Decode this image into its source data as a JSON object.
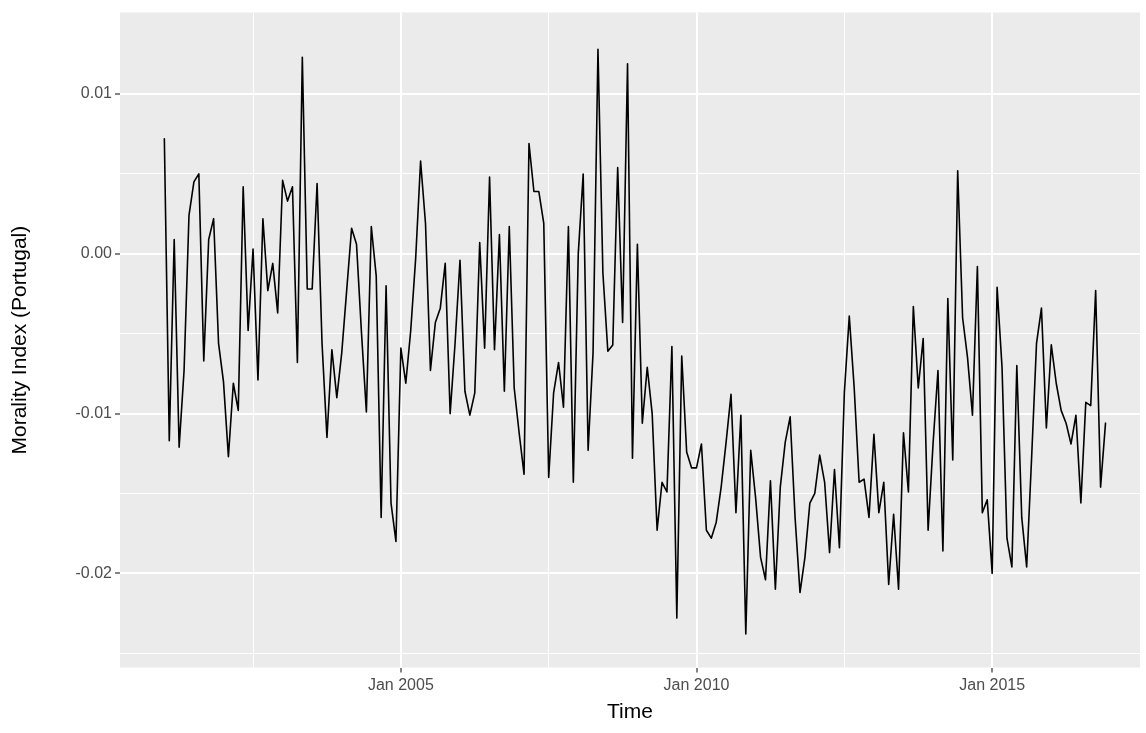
{
  "chart_data": {
    "type": "line",
    "xlabel": "Time",
    "ylabel": "Morality Index (Portugal)",
    "x": [
      "2001-01",
      "2001-02",
      "2001-03",
      "2001-04",
      "2001-05",
      "2001-06",
      "2001-07",
      "2001-08",
      "2001-09",
      "2001-10",
      "2001-11",
      "2001-12",
      "2002-01",
      "2002-02",
      "2002-03",
      "2002-04",
      "2002-05",
      "2002-06",
      "2002-07",
      "2002-08",
      "2002-09",
      "2002-10",
      "2002-11",
      "2002-12",
      "2003-01",
      "2003-02",
      "2003-03",
      "2003-04",
      "2003-05",
      "2003-06",
      "2003-07",
      "2003-08",
      "2003-09",
      "2003-10",
      "2003-11",
      "2003-12",
      "2004-01",
      "2004-02",
      "2004-03",
      "2004-04",
      "2004-05",
      "2004-06",
      "2004-07",
      "2004-08",
      "2004-09",
      "2004-10",
      "2004-11",
      "2004-12",
      "2005-01",
      "2005-02",
      "2005-03",
      "2005-04",
      "2005-05",
      "2005-06",
      "2005-07",
      "2005-08",
      "2005-09",
      "2005-10",
      "2005-11",
      "2005-12",
      "2006-01",
      "2006-02",
      "2006-03",
      "2006-04",
      "2006-05",
      "2006-06",
      "2006-07",
      "2006-08",
      "2006-09",
      "2006-10",
      "2006-11",
      "2006-12",
      "2007-01",
      "2007-02",
      "2007-03",
      "2007-04",
      "2007-05",
      "2007-06",
      "2007-07",
      "2007-08",
      "2007-09",
      "2007-10",
      "2007-11",
      "2007-12",
      "2008-01",
      "2008-02",
      "2008-03",
      "2008-04",
      "2008-05",
      "2008-06",
      "2008-07",
      "2008-08",
      "2008-09",
      "2008-10",
      "2008-11",
      "2008-12",
      "2009-01",
      "2009-02",
      "2009-03",
      "2009-04",
      "2009-05",
      "2009-06",
      "2009-07",
      "2009-08",
      "2009-09",
      "2009-10",
      "2009-11",
      "2009-12",
      "2010-01",
      "2010-02",
      "2010-03",
      "2010-04",
      "2010-05",
      "2010-06",
      "2010-07",
      "2010-08",
      "2010-09",
      "2010-10",
      "2010-11",
      "2010-12",
      "2011-01",
      "2011-02",
      "2011-03",
      "2011-04",
      "2011-05",
      "2011-06",
      "2011-07",
      "2011-08",
      "2011-09",
      "2011-10",
      "2011-11",
      "2011-12",
      "2012-01",
      "2012-02",
      "2012-03",
      "2012-04",
      "2012-05",
      "2012-06",
      "2012-07",
      "2012-08",
      "2012-09",
      "2012-10",
      "2012-11",
      "2012-12",
      "2013-01",
      "2013-02",
      "2013-03",
      "2013-04",
      "2013-05",
      "2013-06",
      "2013-07",
      "2013-08",
      "2013-09",
      "2013-10",
      "2013-11",
      "2013-12",
      "2014-01",
      "2014-02",
      "2014-03",
      "2014-04",
      "2014-05",
      "2014-06",
      "2014-07",
      "2014-08",
      "2014-09",
      "2014-10",
      "2014-11",
      "2014-12",
      "2015-01",
      "2015-02",
      "2015-03",
      "2015-04",
      "2015-05",
      "2015-06",
      "2015-07",
      "2015-08",
      "2015-09",
      "2015-10",
      "2015-11",
      "2015-12",
      "2016-01",
      "2016-02",
      "2016-03",
      "2016-04",
      "2016-05",
      "2016-06",
      "2016-07",
      "2016-08",
      "2016-09",
      "2016-10",
      "2016-11",
      "2016-12"
    ],
    "series": [
      {
        "color": "#000000",
        "values": [
          0.0072,
          -0.0117,
          0.0009,
          -0.0121,
          -0.0073,
          0.0024,
          0.0045,
          0.005,
          -0.0067,
          0.0009,
          0.0022,
          -0.0056,
          -0.008,
          -0.0127,
          -0.0081,
          -0.0098,
          0.0042,
          -0.0048,
          0.0003,
          -0.0079,
          0.0022,
          -0.0023,
          -0.0006,
          -0.0037,
          0.0046,
          0.0033,
          0.0042,
          -0.0068,
          0.0123,
          -0.0022,
          -0.0022,
          0.0044,
          -0.0056,
          -0.0115,
          -0.006,
          -0.009,
          -0.0062,
          -0.0023,
          0.0016,
          0.0006,
          -0.0049,
          -0.0099,
          0.0017,
          -0.0014,
          -0.0165,
          -0.002,
          -0.0156,
          -0.018,
          -0.0059,
          -0.0081,
          -0.0048,
          -0.0003,
          0.0058,
          0.0019,
          -0.0073,
          -0.0043,
          -0.0034,
          -0.0006,
          -0.01,
          -0.0056,
          -0.0004,
          -0.0086,
          -0.0101,
          -0.0087,
          0.0007,
          -0.0059,
          0.0048,
          -0.006,
          0.0012,
          -0.0086,
          0.0017,
          -0.0084,
          -0.0112,
          -0.0138,
          0.0069,
          0.0039,
          0.0039,
          0.0019,
          -0.014,
          -0.0087,
          -0.0068,
          -0.0096,
          0.0017,
          -0.0143,
          0.0,
          0.005,
          -0.0123,
          -0.0062,
          0.0128,
          -0.0012,
          -0.0061,
          -0.0057,
          0.0054,
          -0.0043,
          0.0119,
          -0.0128,
          0.0006,
          -0.0106,
          -0.0071,
          -0.01,
          -0.0173,
          -0.0143,
          -0.0149,
          -0.0058,
          -0.0228,
          -0.0064,
          -0.0124,
          -0.0134,
          -0.0134,
          -0.0119,
          -0.0173,
          -0.0178,
          -0.0168,
          -0.0146,
          -0.0118,
          -0.0088,
          -0.0162,
          -0.0101,
          -0.0238,
          -0.0123,
          -0.0153,
          -0.019,
          -0.0204,
          -0.0142,
          -0.021,
          -0.0146,
          -0.0118,
          -0.0102,
          -0.0165,
          -0.0212,
          -0.019,
          -0.0156,
          -0.015,
          -0.0126,
          -0.0143,
          -0.0187,
          -0.0135,
          -0.0184,
          -0.0087,
          -0.0039,
          -0.0084,
          -0.0143,
          -0.0141,
          -0.0165,
          -0.0113,
          -0.0162,
          -0.0143,
          -0.0207,
          -0.0163,
          -0.021,
          -0.0112,
          -0.0149,
          -0.0033,
          -0.0084,
          -0.0053,
          -0.0173,
          -0.0119,
          -0.0073,
          -0.0186,
          -0.0028,
          -0.0129,
          0.0052,
          -0.004,
          -0.0065,
          -0.0101,
          -0.0008,
          -0.0162,
          -0.0154,
          -0.02,
          -0.0021,
          -0.0071,
          -0.0178,
          -0.0196,
          -0.007,
          -0.0165,
          -0.0196,
          -0.0128,
          -0.0056,
          -0.0034,
          -0.0109,
          -0.0057,
          -0.0081,
          -0.0098,
          -0.0106,
          -0.0119,
          -0.0101,
          -0.0156,
          -0.0093,
          -0.0095,
          -0.0023,
          -0.0146,
          -0.0106
        ]
      }
    ],
    "xlim": [
      "2000-04",
      "2017-07"
    ],
    "xticks": [
      {
        "value": "2002-07",
        "label": null
      },
      {
        "value": "2005-01",
        "label": "Jan 2005"
      },
      {
        "value": "2007-07",
        "label": null
      },
      {
        "value": "2010-01",
        "label": "Jan 2010"
      },
      {
        "value": "2012-07",
        "label": null
      },
      {
        "value": "2015-01",
        "label": "Jan 2015"
      },
      {
        "value": "2017-07",
        "label": null
      }
    ],
    "ylim": [
      -0.0259,
      0.0151
    ],
    "yticks": [
      {
        "value": -0.025,
        "label": null
      },
      -0.02,
      {
        "value": -0.015,
        "label": null
      },
      -0.01,
      {
        "value": -0.005,
        "label": null
      },
      {
        "value": 0,
        "label": "0.00"
      },
      {
        "value": 0.005,
        "label": null
      },
      0.01
    ],
    "grid": true,
    "legend": false,
    "marker": "none",
    "line_style": "solid"
  }
}
